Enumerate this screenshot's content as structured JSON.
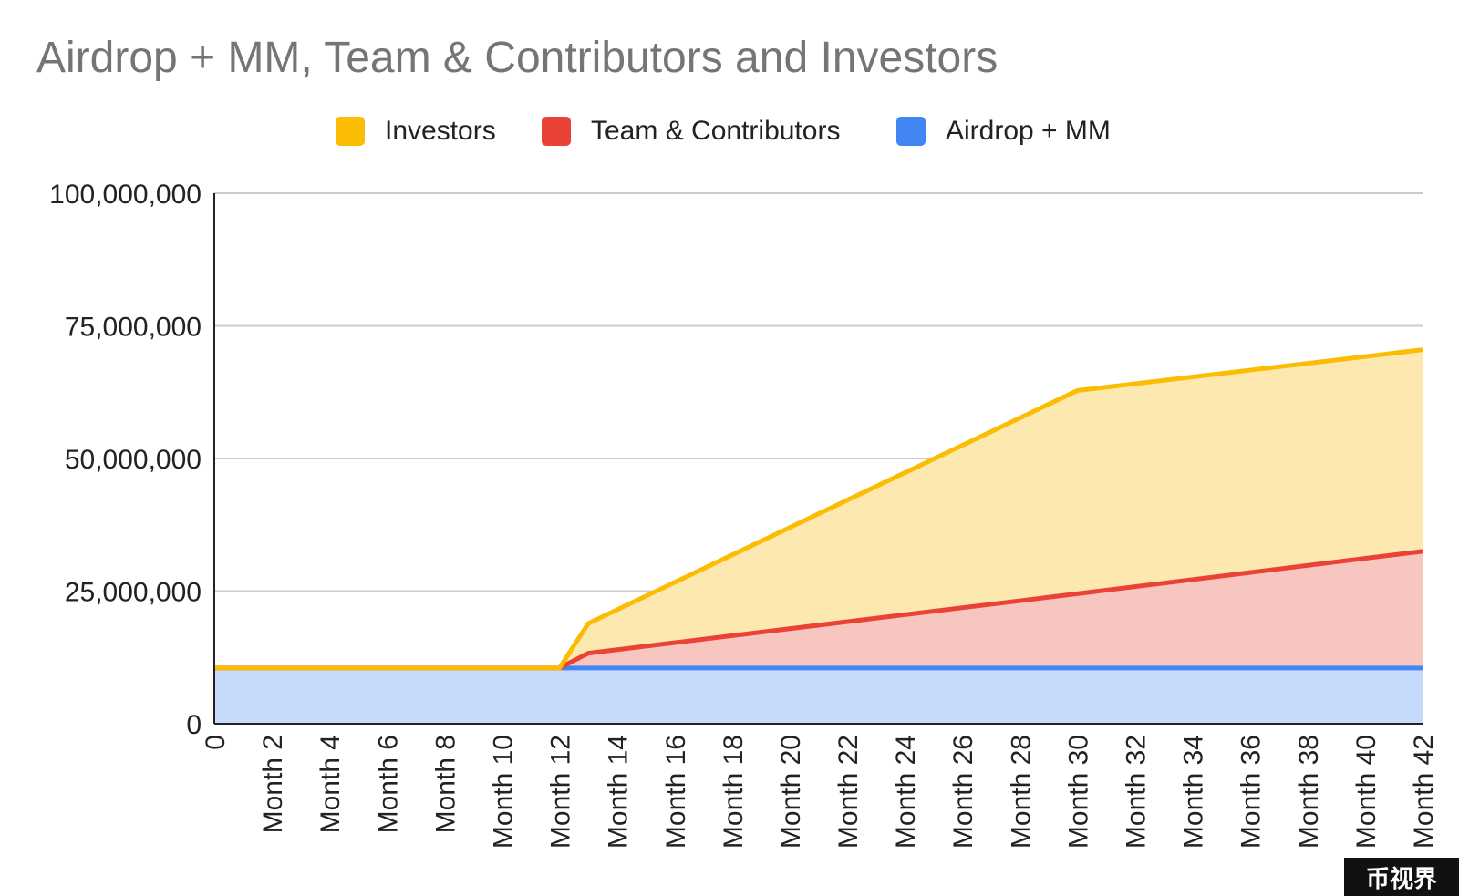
{
  "chart_data": {
    "type": "area",
    "stacked": true,
    "title": "Airdrop + MM, Team & Contributors and Investors",
    "xlabel": "",
    "ylabel": "",
    "ylim": [
      0,
      100000000
    ],
    "y_ticks": [
      "0",
      "25,000,000",
      "50,000,000",
      "75,000,000",
      "100,000,000"
    ],
    "y_tick_values": [
      0,
      25000000,
      50000000,
      75000000,
      100000000
    ],
    "x_tick_labels": [
      "0",
      "Month 2",
      "Month 4",
      "Month 6",
      "Month 8",
      "Month 10",
      "Month 12",
      "Month 14",
      "Month 16",
      "Month 18",
      "Month 20",
      "Month 22",
      "Month 24",
      "Month 26",
      "Month 28",
      "Month 30",
      "Month 32",
      "Month 34",
      "Month 36",
      "Month 38",
      "Month 40",
      "Month 42"
    ],
    "x_tick_months": [
      0,
      2,
      4,
      6,
      8,
      10,
      12,
      14,
      16,
      18,
      20,
      22,
      24,
      26,
      28,
      30,
      32,
      34,
      36,
      38,
      40,
      42
    ],
    "x_range": [
      0,
      42
    ],
    "legend_position": "top",
    "grid": true,
    "series": [
      {
        "name": "Airdrop + MM",
        "color": "#4285f4",
        "fill": "#c6dafc",
        "points": [
          [
            0,
            10500000
          ],
          [
            12,
            10500000
          ],
          [
            13,
            10500000
          ],
          [
            30,
            10500000
          ],
          [
            42,
            10500000
          ]
        ]
      },
      {
        "name": "Team & Contributors",
        "color": "#ea4335",
        "fill": "#f8c6c1",
        "points": [
          [
            0,
            0
          ],
          [
            12,
            0
          ],
          [
            13,
            2800000
          ],
          [
            30,
            14000000
          ],
          [
            42,
            22000000
          ]
        ]
      },
      {
        "name": "Investors",
        "color": "#fbbc04",
        "fill": "#fde8b0",
        "points": [
          [
            0,
            0
          ],
          [
            12,
            0
          ],
          [
            13,
            5600000
          ],
          [
            30,
            38300000
          ],
          [
            42,
            38000000
          ]
        ]
      }
    ]
  },
  "legend": {
    "items": [
      {
        "label": "Investors",
        "color": "#fbbc04"
      },
      {
        "label": "Team & Contributors",
        "color": "#ea4335"
      },
      {
        "label": "Airdrop + MM",
        "color": "#4285f4"
      }
    ]
  },
  "watermark": {
    "text": "币视界"
  }
}
